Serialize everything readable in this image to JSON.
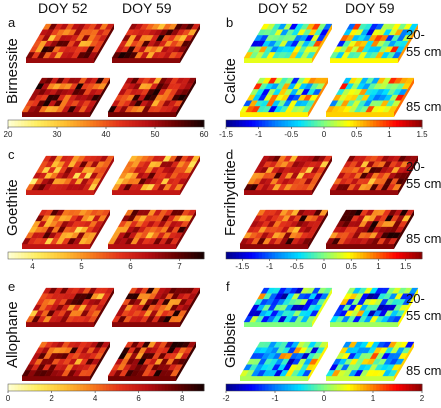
{
  "column_titles": [
    "DOY 52",
    "DOY 59"
  ],
  "depth_labels": {
    "upper": "20-\n55 cm",
    "lower": "85 cm"
  },
  "colors": {
    "hot_scale": [
      "#ffffd0",
      "#ffee60",
      "#ffbf30",
      "#f77a1c",
      "#e3321a",
      "#b80f12",
      "#6a0000",
      "#1a0000"
    ],
    "jet_scale": [
      "#000090",
      "#0000ff",
      "#0080ff",
      "#00e0ff",
      "#80ff80",
      "#ffff00",
      "#ff8000",
      "#ff0000",
      "#900000"
    ]
  },
  "chart_data": [
    {
      "type": "heatmap",
      "panel": "a",
      "mineral": "Birnessite",
      "colormap": "hot",
      "vmin": 20,
      "vmax": 60,
      "ticks": [
        20,
        30,
        40,
        50,
        60
      ],
      "typical_level": 0.62,
      "show_depth_labels": false,
      "maps": [
        {
          "time": "DOY 52",
          "depth": "upper"
        },
        {
          "time": "DOY 59",
          "depth": "upper"
        },
        {
          "time": "DOY 52",
          "depth": "lower"
        },
        {
          "time": "DOY 59",
          "depth": "lower"
        }
      ]
    },
    {
      "type": "heatmap",
      "panel": "b",
      "mineral": "Calcite",
      "colormap": "jet",
      "vmin": -1.5,
      "vmax": 1.5,
      "ticks": [
        -1.5,
        -1,
        -0.5,
        0,
        0.5,
        1,
        1.5
      ],
      "typical_level": 0.45,
      "show_depth_labels": true,
      "maps": [
        {
          "time": "DOY 52",
          "depth": "upper"
        },
        {
          "time": "DOY 59",
          "depth": "upper"
        },
        {
          "time": "DOY 52",
          "depth": "lower"
        },
        {
          "time": "DOY 59",
          "depth": "lower"
        }
      ]
    },
    {
      "type": "heatmap",
      "panel": "c",
      "mineral": "Goethite",
      "colormap": "hot",
      "vmin": 3.5,
      "vmax": 7.5,
      "ticks": [
        4,
        5,
        6,
        7
      ],
      "typical_level": 0.5,
      "show_depth_labels": false,
      "maps": [
        {
          "time": "DOY 52",
          "depth": "upper"
        },
        {
          "time": "DOY 59",
          "depth": "upper"
        },
        {
          "time": "DOY 52",
          "depth": "lower"
        },
        {
          "time": "DOY 59",
          "depth": "lower"
        }
      ]
    },
    {
      "type": "heatmap",
      "panel": "d",
      "mineral": "Ferrihydrite",
      "colormap": "hot",
      "vmin": -1.8,
      "vmax": 1.8,
      "ticks": [
        -1.5,
        -1,
        -0.5,
        0,
        0.5,
        1,
        1.5
      ],
      "typical_level": 0.6,
      "show_depth_labels": true,
      "colorbar_colormap": "jet",
      "maps": [
        {
          "time": "DOY 52",
          "depth": "upper"
        },
        {
          "time": "DOY 59",
          "depth": "upper"
        },
        {
          "time": "DOY 52",
          "depth": "lower"
        },
        {
          "time": "DOY 59",
          "depth": "lower"
        }
      ]
    },
    {
      "type": "heatmap",
      "panel": "e",
      "mineral": "Allophane",
      "colormap": "hot",
      "vmin": 0,
      "vmax": 9,
      "ticks": [
        0,
        2,
        4,
        6,
        8
      ],
      "typical_level": 0.62,
      "show_depth_labels": false,
      "maps": [
        {
          "time": "DOY 52",
          "depth": "upper"
        },
        {
          "time": "DOY 59",
          "depth": "upper"
        },
        {
          "time": "DOY 52",
          "depth": "lower"
        },
        {
          "time": "DOY 59",
          "depth": "lower"
        }
      ]
    },
    {
      "type": "heatmap",
      "panel": "f",
      "mineral": "Gibbsite",
      "colormap": "jet",
      "vmin": -2,
      "vmax": 2,
      "ticks": [
        -2,
        -1,
        0,
        1,
        2
      ],
      "typical_level": 0.35,
      "show_depth_labels": true,
      "maps": [
        {
          "time": "DOY 52",
          "depth": "upper"
        },
        {
          "time": "DOY 59",
          "depth": "upper"
        },
        {
          "time": "DOY 52",
          "depth": "lower"
        },
        {
          "time": "DOY 59",
          "depth": "lower"
        }
      ]
    }
  ]
}
